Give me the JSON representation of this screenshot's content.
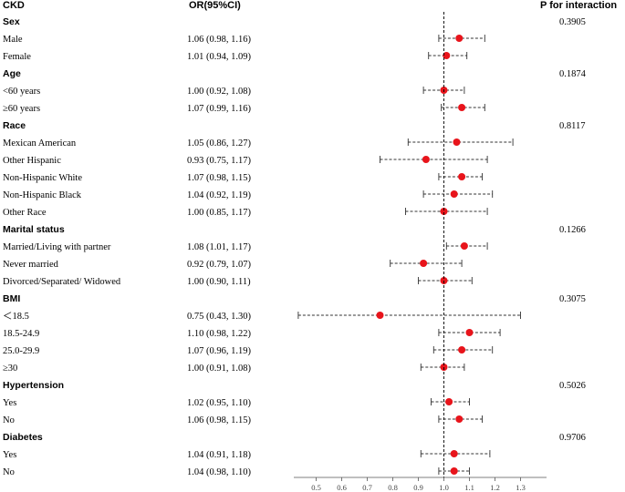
{
  "chart_data": {
    "type": "forest",
    "headers": {
      "label": "CKD",
      "or": "OR(95%CI)",
      "p": "P for interaction"
    },
    "reference_line": 1.0,
    "xlim": [
      0.4,
      1.4
    ],
    "xticks": [
      "0.5",
      "0.6",
      "0.7",
      "0.8",
      "0.9",
      "1.0",
      "1.1",
      "1.2",
      "1.3"
    ],
    "colors": {
      "point": "#e8141b",
      "ci": "#333333",
      "axis": "#555555"
    },
    "groups": [
      {
        "name": "Sex",
        "p": "0.3905",
        "rows": [
          {
            "label": "Male",
            "ci_text": "1.06 (0.98, 1.16)",
            "or": 1.06,
            "lo": 0.98,
            "hi": 1.16
          },
          {
            "label": "Female",
            "ci_text": "1.01 (0.94, 1.09)",
            "or": 1.01,
            "lo": 0.94,
            "hi": 1.09
          }
        ]
      },
      {
        "name": "Age",
        "p": "0.1874",
        "rows": [
          {
            "label": "<60 years",
            "ci_text": "1.00 (0.92, 1.08)",
            "or": 1.0,
            "lo": 0.92,
            "hi": 1.08
          },
          {
            "label": "≥60 years",
            "ci_text": "1.07 (0.99, 1.16)",
            "or": 1.07,
            "lo": 0.99,
            "hi": 1.16
          }
        ]
      },
      {
        "name": "Race",
        "p": "0.8117",
        "rows": [
          {
            "label": "Mexican American",
            "ci_text": "1.05 (0.86, 1.27)",
            "or": 1.05,
            "lo": 0.86,
            "hi": 1.27
          },
          {
            "label": "Other Hispanic",
            "ci_text": "0.93 (0.75, 1.17)",
            "or": 0.93,
            "lo": 0.75,
            "hi": 1.17
          },
          {
            "label": "Non-Hispanic White",
            "ci_text": "1.07 (0.98, 1.15)",
            "or": 1.07,
            "lo": 0.98,
            "hi": 1.15
          },
          {
            "label": "Non-Hispanic Black",
            "ci_text": "1.04 (0.92, 1.19)",
            "or": 1.04,
            "lo": 0.92,
            "hi": 1.19
          },
          {
            "label": "Other Race",
            "ci_text": "1.00 (0.85, 1.17)",
            "or": 1.0,
            "lo": 0.85,
            "hi": 1.17
          }
        ]
      },
      {
        "name": "Marital status",
        "p": "0.1266",
        "rows": [
          {
            "label": "Married/Living with partner",
            "ci_text": "1.08 (1.01, 1.17)",
            "or": 1.08,
            "lo": 1.01,
            "hi": 1.17
          },
          {
            "label": "Never married",
            "ci_text": "0.92 (0.79, 1.07)",
            "or": 0.92,
            "lo": 0.79,
            "hi": 1.07
          },
          {
            "label": "Divorced/Separated/ Widowed",
            "ci_text": "1.00 (0.90, 1.11)",
            "or": 1.0,
            "lo": 0.9,
            "hi": 1.11
          }
        ]
      },
      {
        "name": "BMI",
        "p": "0.3075",
        "rows": [
          {
            "label": "＜18.5",
            "ci_text": "0.75 (0.43, 1.30)",
            "or": 0.75,
            "lo": 0.43,
            "hi": 1.3
          },
          {
            "label": "18.5-24.9",
            "ci_text": "1.10 (0.98, 1.22)",
            "or": 1.1,
            "lo": 0.98,
            "hi": 1.22
          },
          {
            "label": "25.0-29.9",
            "ci_text": "1.07 (0.96, 1.19)",
            "or": 1.07,
            "lo": 0.96,
            "hi": 1.19
          },
          {
            "label": "≥30",
            "ci_text": "1.00 (0.91, 1.08)",
            "or": 1.0,
            "lo": 0.91,
            "hi": 1.08
          }
        ]
      },
      {
        "name": "Hypertension",
        "p": "0.5026",
        "rows": [
          {
            "label": "Yes",
            "ci_text": "1.02 (0.95, 1.10)",
            "or": 1.02,
            "lo": 0.95,
            "hi": 1.1
          },
          {
            "label": "No",
            "ci_text": "1.06 (0.98, 1.15)",
            "or": 1.06,
            "lo": 0.98,
            "hi": 1.15
          }
        ]
      },
      {
        "name": "Diabetes",
        "p": "0.9706",
        "rows": [
          {
            "label": "Yes",
            "ci_text": "1.04 (0.91, 1.18)",
            "or": 1.04,
            "lo": 0.91,
            "hi": 1.18
          },
          {
            "label": "No",
            "ci_text": "1.04 (0.98, 1.10)",
            "or": 1.04,
            "lo": 0.98,
            "hi": 1.1
          }
        ]
      }
    ]
  }
}
